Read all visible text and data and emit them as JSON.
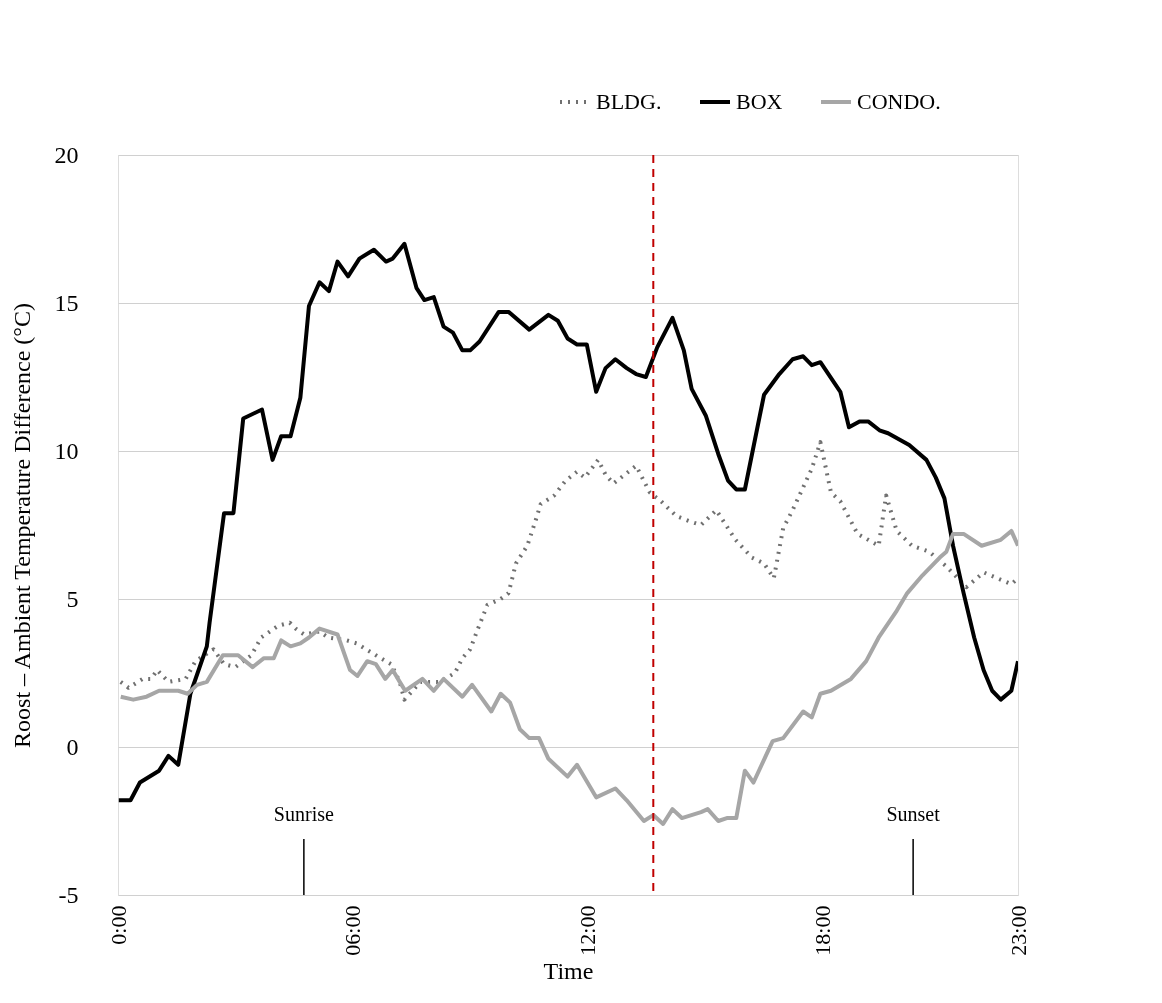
{
  "chart_data": {
    "type": "line",
    "xlabel": "Time",
    "ylabel": "Roost – Ambient Temperature Difference (°C)",
    "xlim": [
      0,
      23
    ],
    "xticks": [
      {
        "value": 0,
        "label": "0:00"
      },
      {
        "value": 6,
        "label": "06:00"
      },
      {
        "value": 12,
        "label": "12:00"
      },
      {
        "value": 18,
        "label": "18:00"
      },
      {
        "value": 23,
        "label": "23:00"
      }
    ],
    "ylim": [
      -5,
      20
    ],
    "yticks": [
      -5,
      0,
      5,
      10,
      15,
      20
    ],
    "grid": "y",
    "legend": "top right",
    "series": [
      {
        "name": "BLDG.",
        "color": "#707070",
        "line_style": "dotted",
        "x": [
          0.07,
          0.27,
          0.63,
          0.85,
          1.0,
          1.29,
          1.73,
          1.98,
          2.44,
          2.71,
          3.0,
          3.41,
          3.66,
          4.1,
          4.39,
          4.54,
          4.76,
          5.15,
          5.37,
          5.85,
          6.1,
          6.34,
          6.59,
          6.98,
          7.2,
          7.32,
          7.73,
          8.22,
          8.61,
          8.8,
          9.0,
          9.2,
          9.44,
          9.78,
          9.98,
          10.17,
          10.46,
          10.66,
          10.8,
          11.15,
          11.44,
          11.73,
          11.93,
          12.27,
          12.46,
          12.66,
          13.24,
          13.59,
          13.88,
          14.27,
          14.66,
          14.9,
          15.29,
          15.78,
          16.2,
          16.51,
          16.76,
          17.0,
          17.24,
          17.73,
          17.95,
          18.22,
          18.46,
          18.9,
          19.44,
          19.63,
          19.9,
          20.29,
          20.73,
          21.17,
          21.68,
          22.12,
          22.83,
          23.0
        ],
        "values": [
          2.2,
          2.0,
          2.3,
          2.3,
          2.6,
          2.2,
          2.3,
          2.9,
          3.3,
          2.8,
          2.7,
          3.1,
          3.7,
          4.1,
          4.2,
          4.0,
          3.8,
          3.9,
          3.7,
          3.6,
          3.5,
          3.3,
          3.1,
          2.8,
          2.2,
          1.6,
          2.2,
          2.2,
          2.5,
          3.0,
          3.3,
          4.0,
          4.8,
          5.0,
          5.2,
          6.2,
          6.8,
          7.6,
          8.2,
          8.5,
          9.0,
          9.3,
          9.1,
          9.7,
          9.2,
          8.9,
          9.5,
          8.6,
          8.3,
          7.8,
          7.6,
          7.5,
          8.0,
          7.0,
          6.4,
          6.2,
          5.7,
          7.4,
          8.0,
          9.4,
          10.3,
          8.6,
          8.3,
          7.2,
          6.8,
          8.5,
          7.3,
          6.8,
          6.6,
          6.1,
          5.4,
          5.9,
          5.5,
          5.7
        ]
      },
      {
        "name": "BOX",
        "color": "#000000",
        "line_style": "solid",
        "x": [
          0.02,
          0.32,
          0.56,
          1.05,
          1.29,
          1.54,
          1.85,
          2.27,
          2.34,
          2.71,
          2.95,
          3.2,
          3.68,
          3.95,
          4.17,
          4.41,
          4.66,
          4.88,
          5.15,
          5.39,
          5.61,
          5.88,
          6.17,
          6.54,
          6.85,
          7.02,
          7.32,
          7.63,
          7.83,
          8.07,
          8.32,
          8.56,
          8.8,
          9.0,
          9.24,
          9.73,
          9.98,
          10.51,
          11.0,
          11.24,
          11.49,
          11.73,
          11.98,
          12.22,
          12.46,
          12.71,
          13.0,
          13.24,
          13.49,
          13.78,
          14.17,
          14.46,
          14.66,
          15.02,
          15.34,
          15.59,
          15.8,
          16.02,
          16.51,
          16.9,
          17.24,
          17.51,
          17.73,
          17.95,
          18.46,
          18.68,
          18.95,
          19.17,
          19.46,
          19.68,
          20.22,
          20.66,
          20.9,
          21.12,
          21.34,
          21.61,
          21.88,
          22.12,
          22.34,
          22.56,
          22.83,
          23.0
        ],
        "values": [
          -1.8,
          -1.8,
          -1.2,
          -0.8,
          -0.3,
          -0.6,
          1.8,
          3.4,
          4.2,
          7.9,
          7.9,
          11.1,
          11.4,
          9.7,
          10.5,
          10.5,
          11.8,
          14.9,
          15.7,
          15.4,
          16.4,
          15.9,
          16.5,
          16.8,
          16.4,
          16.5,
          17.0,
          15.5,
          15.1,
          15.2,
          14.2,
          14.0,
          13.4,
          13.4,
          13.7,
          14.7,
          14.7,
          14.1,
          14.6,
          14.4,
          13.8,
          13.6,
          13.6,
          12.0,
          12.8,
          13.1,
          12.8,
          12.6,
          12.5,
          13.5,
          14.5,
          13.4,
          12.1,
          11.2,
          9.9,
          9.0,
          8.7,
          8.7,
          11.9,
          12.6,
          13.1,
          13.2,
          12.9,
          13.0,
          12.0,
          10.8,
          11.0,
          11.0,
          10.7,
          10.6,
          10.2,
          9.7,
          9.1,
          8.4,
          6.8,
          5.2,
          3.7,
          2.6,
          1.9,
          1.6,
          1.9,
          2.9
        ]
      },
      {
        "name": "CONDO.",
        "color": "#a6a6a6",
        "line_style": "solid",
        "x": [
          0.07,
          0.39,
          0.73,
          1.05,
          1.54,
          1.78,
          2.02,
          2.27,
          2.68,
          3.07,
          3.44,
          3.73,
          3.98,
          4.17,
          4.41,
          4.66,
          4.88,
          5.15,
          5.61,
          5.93,
          6.12,
          6.37,
          6.59,
          6.83,
          7.02,
          7.2,
          7.34,
          7.78,
          8.07,
          8.32,
          8.8,
          9.05,
          9.54,
          9.78,
          10.02,
          10.27,
          10.51,
          10.76,
          11.0,
          11.49,
          11.73,
          12.22,
          12.71,
          13.0,
          13.44,
          13.68,
          13.93,
          14.17,
          14.41,
          14.9,
          15.07,
          15.34,
          15.56,
          15.8,
          16.02,
          16.24,
          16.73,
          17.0,
          17.51,
          17.73,
          17.95,
          18.22,
          18.73,
          19.12,
          19.44,
          19.9,
          20.17,
          20.56,
          21.0,
          21.17,
          21.34,
          21.61,
          22.07,
          22.56,
          22.83,
          23.0
        ],
        "values": [
          1.7,
          1.6,
          1.7,
          1.9,
          1.9,
          1.8,
          2.1,
          2.2,
          3.1,
          3.1,
          2.7,
          3.0,
          3.0,
          3.6,
          3.4,
          3.5,
          3.7,
          4.0,
          3.8,
          2.6,
          2.4,
          2.9,
          2.8,
          2.3,
          2.6,
          2.2,
          1.9,
          2.3,
          1.9,
          2.3,
          1.7,
          2.1,
          1.2,
          1.8,
          1.5,
          0.6,
          0.3,
          0.3,
          -0.4,
          -1.0,
          -0.6,
          -1.7,
          -1.4,
          -1.8,
          -2.5,
          -2.3,
          -2.6,
          -2.1,
          -2.4,
          -2.2,
          -2.1,
          -2.5,
          -2.4,
          -2.4,
          -0.8,
          -1.2,
          0.2,
          0.3,
          1.2,
          1.0,
          1.8,
          1.9,
          2.3,
          2.9,
          3.7,
          4.6,
          5.2,
          5.8,
          6.4,
          6.6,
          7.2,
          7.2,
          6.8,
          7.0,
          7.3,
          6.8
        ]
      }
    ],
    "ref_lines": [
      {
        "axis": "x",
        "value": 13.68,
        "color": "#c00000",
        "line_style": "dashed"
      }
    ],
    "annotations": [
      {
        "text": "Sunrise",
        "x": 4.75
      },
      {
        "text": "Sunset",
        "x": 20.32
      }
    ]
  }
}
